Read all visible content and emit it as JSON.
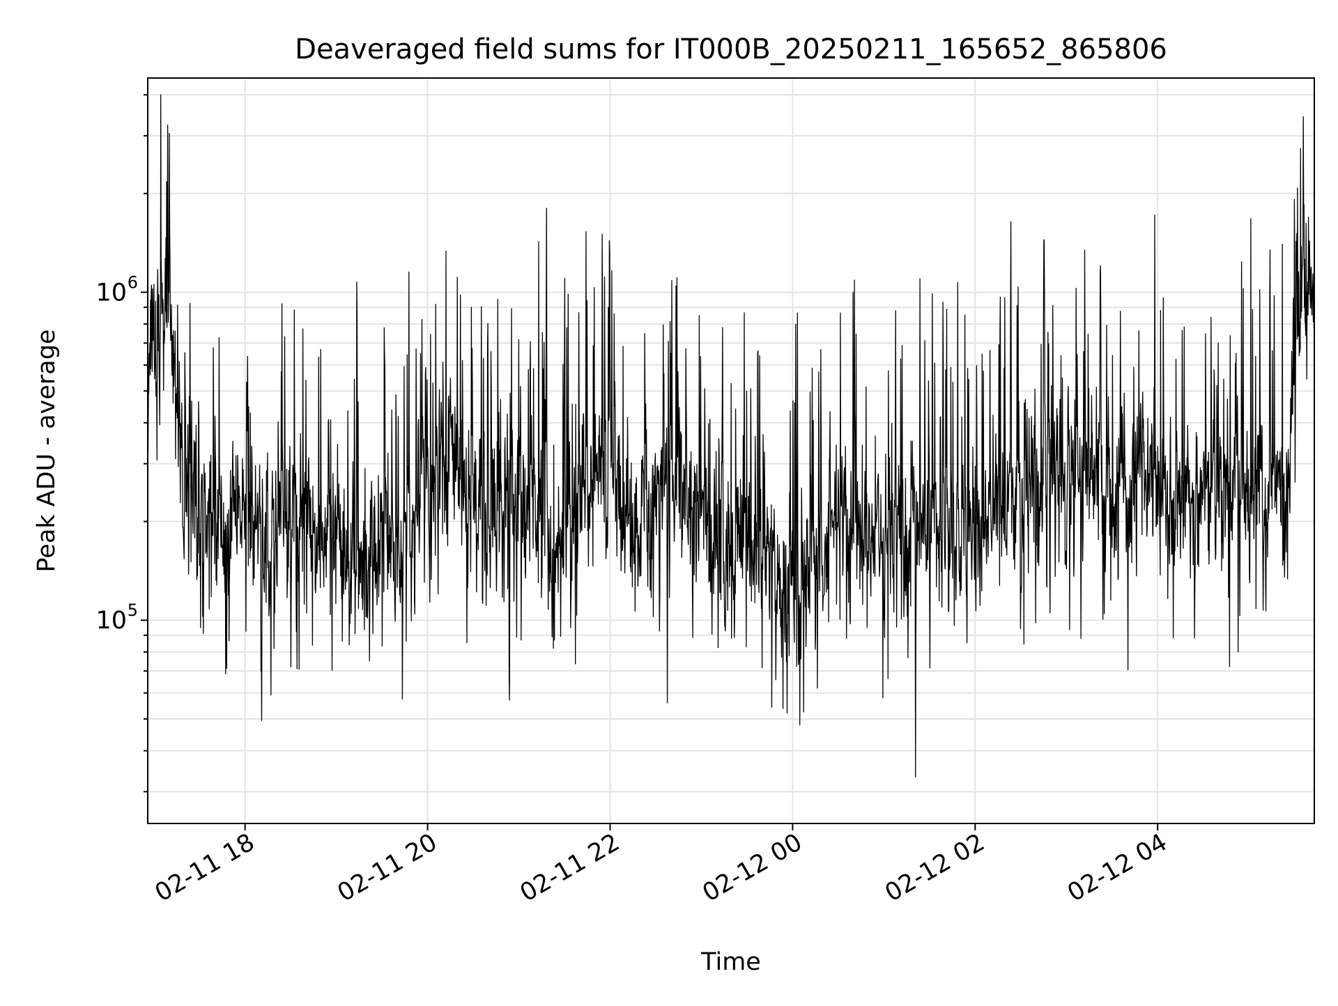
{
  "chart_data": {
    "type": "line",
    "title": "Deaveraged field sums for IT000B_20250211_165652_865806",
    "xlabel": "Time",
    "ylabel": "Peak ADU - average",
    "y_scale": "log",
    "ylim": [
      24000,
      4500000
    ],
    "xlim": [
      "2025-02-11 16:56",
      "2025-02-12 05:43"
    ],
    "grid": true,
    "x_ticks": [
      {
        "value": "2025-02-11 18:00",
        "label": "02-11 18"
      },
      {
        "value": "2025-02-11 20:00",
        "label": "02-11 20"
      },
      {
        "value": "2025-02-11 22:00",
        "label": "02-11 22"
      },
      {
        "value": "2025-02-12 00:00",
        "label": "02-12 00"
      },
      {
        "value": "2025-02-12 02:00",
        "label": "02-12 02"
      },
      {
        "value": "2025-02-12 04:00",
        "label": "02-12 04"
      }
    ],
    "y_ticks": [
      {
        "value": 100000,
        "base": "10",
        "exp": "5"
      },
      {
        "value": 1000000,
        "base": "10",
        "exp": "6"
      }
    ],
    "series": [
      {
        "color": "#000000",
        "x": [
          "2025-02-11 16:56",
          "2025-02-11 17:05",
          "2025-02-11 17:10",
          "2025-02-11 17:15",
          "2025-02-11 17:20",
          "2025-02-11 17:30",
          "2025-02-11 17:45",
          "2025-02-11 18:00",
          "2025-02-11 18:15",
          "2025-02-11 18:30",
          "2025-02-11 18:45",
          "2025-02-11 19:00",
          "2025-02-11 19:15",
          "2025-02-11 19:30",
          "2025-02-11 19:45",
          "2025-02-11 20:00",
          "2025-02-11 20:15",
          "2025-02-11 20:30",
          "2025-02-11 20:45",
          "2025-02-11 21:00",
          "2025-02-11 21:15",
          "2025-02-11 21:30",
          "2025-02-11 21:45",
          "2025-02-11 22:00",
          "2025-02-11 22:15",
          "2025-02-11 22:30",
          "2025-02-11 22:45",
          "2025-02-11 23:00",
          "2025-02-11 23:15",
          "2025-02-11 23:30",
          "2025-02-11 23:45",
          "2025-02-12 00:00",
          "2025-02-12 00:15",
          "2025-02-12 00:30",
          "2025-02-12 00:45",
          "2025-02-12 01:00",
          "2025-02-12 01:15",
          "2025-02-12 01:30",
          "2025-02-12 01:45",
          "2025-02-12 02:00",
          "2025-02-12 02:15",
          "2025-02-12 02:30",
          "2025-02-12 02:45",
          "2025-02-12 03:00",
          "2025-02-12 03:15",
          "2025-02-12 03:30",
          "2025-02-12 03:45",
          "2025-02-12 04:00",
          "2025-02-12 04:15",
          "2025-02-12 04:30",
          "2025-02-12 04:45",
          "2025-02-12 05:00",
          "2025-02-12 05:15",
          "2025-02-12 05:25",
          "2025-02-12 05:35",
          "2025-02-12 05:43"
        ],
        "y": [
          650000,
          800000,
          1000000,
          420000,
          250000,
          230000,
          200000,
          210000,
          180000,
          230000,
          200000,
          170000,
          150000,
          160000,
          190000,
          260000,
          350000,
          220000,
          200000,
          230000,
          180000,
          170000,
          250000,
          300000,
          200000,
          250000,
          230000,
          210000,
          180000,
          160000,
          140000,
          130000,
          150000,
          200000,
          180000,
          170000,
          190000,
          200000,
          180000,
          170000,
          220000,
          230000,
          270000,
          300000,
          270000,
          250000,
          260000,
          250000,
          240000,
          230000,
          240000,
          250000,
          260000,
          320000,
          1100000,
          900000
        ]
      }
    ]
  }
}
